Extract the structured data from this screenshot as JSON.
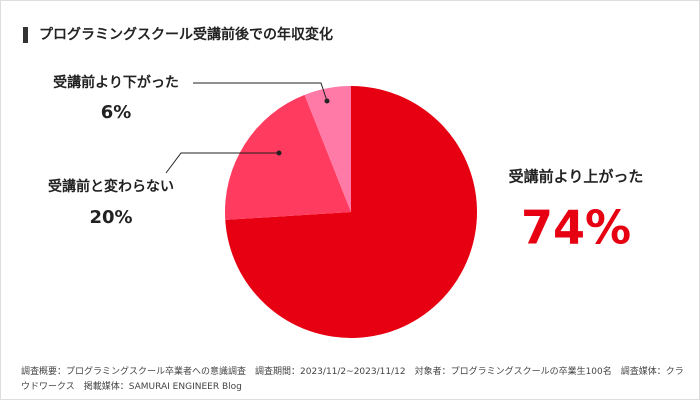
{
  "chart_data": {
    "type": "pie",
    "title": "プログラミングスクール受講前後での年収変化",
    "categories": [
      "受講前より上がった",
      "受講前と変わらない",
      "受講前より下がった"
    ],
    "values": [
      74,
      20,
      6
    ],
    "value_labels": [
      "74%",
      "20%",
      "6%"
    ],
    "colors": [
      "#e60012",
      "#ff3b5f",
      "#ff7aa6"
    ],
    "note": "調査概要：プログラミングスクール卒業者への意識調査　調査期間：2023/11/2~2023/11/12　対象者：プログラミングスクールの卒業生100名　調査媒体：クラウドワークス　掲載媒体：SAMURAI ENGINEER Blog"
  }
}
